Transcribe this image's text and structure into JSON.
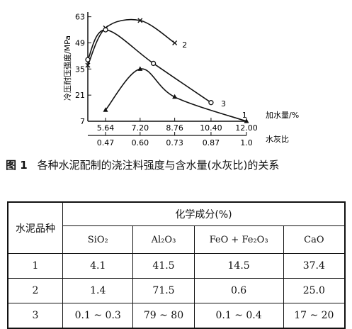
{
  "chart_data": {
    "type": "line",
    "ylabel": "冷压耐压强度/MPa",
    "x_primary_label": "加水量/%",
    "x_secondary_label": "水灰比",
    "y_ticks": [
      7,
      21,
      35,
      49,
      63
    ],
    "x_ticks": [
      5.64,
      7.2,
      8.76,
      10.4,
      12.0
    ],
    "x2_ticks": [
      "0.47",
      "0.60",
      "0.73",
      "0.87",
      "1.0"
    ],
    "xlim": [
      4.84,
      12.0
    ],
    "ylim": [
      7,
      64
    ],
    "grid": false,
    "series": [
      {
        "name": "1",
        "marker": "triangle",
        "x": [
          5.64,
          7.2,
          8.76,
          12.0
        ],
        "y": [
          13,
          35,
          20,
          7
        ],
        "label_at": [
          11.8,
          10.5
        ]
      },
      {
        "name": "2",
        "marker": "x",
        "x": [
          4.84,
          5.64,
          7.2,
          8.76
        ],
        "y": [
          37,
          57,
          61,
          49
        ],
        "label_at": [
          9.1,
          48
        ]
      },
      {
        "name": "3",
        "marker": "circle",
        "x": [
          4.84,
          5.64,
          7.8,
          10.4
        ],
        "y": [
          40,
          56,
          38,
          17
        ],
        "label_at": [
          10.85,
          16.5
        ]
      }
    ]
  },
  "caption": {
    "figure_number": "图 1",
    "text": "各种水泥配制的浇注料强度与含水量(水灰比)的关系"
  },
  "table": {
    "row_header": "水泥品种",
    "group_header": "化学成分(%)",
    "columns": [
      "SiO₂",
      "Al₂O₃",
      "FeO + Fe₂O₃",
      "CaO"
    ],
    "rows": [
      {
        "label": "1",
        "values": [
          "4.1",
          "41.5",
          "14.5",
          "37.4"
        ]
      },
      {
        "label": "2",
        "values": [
          "1.4",
          "71.5",
          "0.6",
          "25.0"
        ]
      },
      {
        "label": "3",
        "values": [
          "0.1 ~ 0.3",
          "79 ~ 80",
          "0.1 ~ 0.4",
          "17 ~ 20"
        ]
      }
    ]
  }
}
